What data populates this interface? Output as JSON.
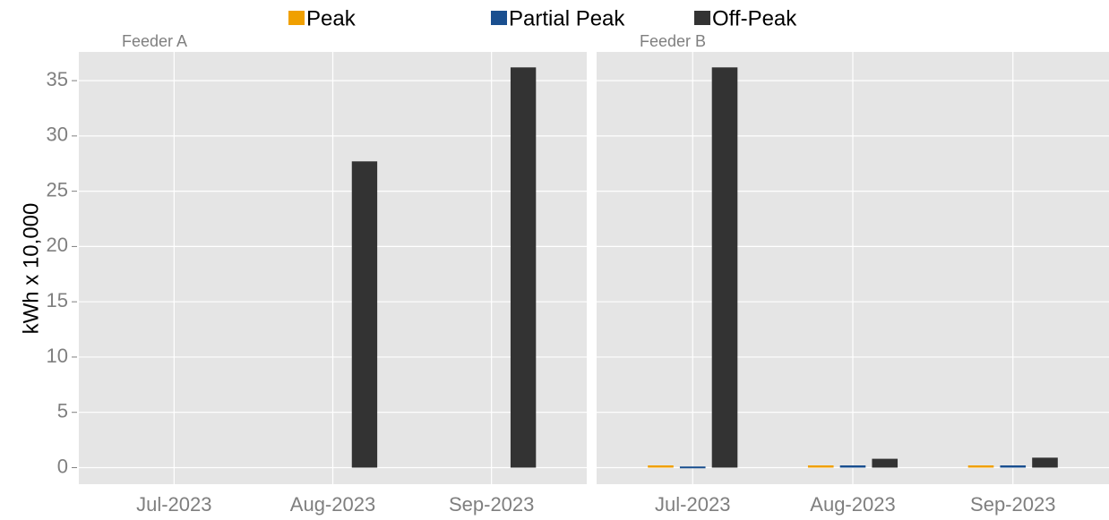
{
  "chart_data": {
    "type": "bar",
    "y_label": "kWh x 10,000",
    "facets": [
      "Feeder A",
      "Feeder B"
    ],
    "categories": [
      "Jul-2023",
      "Aug-2023",
      "Sep-2023"
    ],
    "series": [
      {
        "name": "Peak",
        "color": "#f0a000",
        "values": [
          [
            null,
            null,
            null
          ],
          [
            0.2,
            0.2,
            0.2
          ]
        ]
      },
      {
        "name": "Partial Peak",
        "color": "#1a4f8f",
        "values": [
          [
            null,
            null,
            null
          ],
          [
            0.1,
            0.2,
            0.2
          ]
        ]
      },
      {
        "name": "Off-Peak",
        "color": "#333333",
        "values": [
          [
            null,
            27.7,
            36.2
          ],
          [
            36.2,
            0.8,
            0.9
          ]
        ]
      }
    ],
    "ylim": [
      -1.5,
      37.6
    ],
    "yticks": [
      0,
      5,
      10,
      15,
      20,
      25,
      30,
      35
    ],
    "grid": true
  }
}
